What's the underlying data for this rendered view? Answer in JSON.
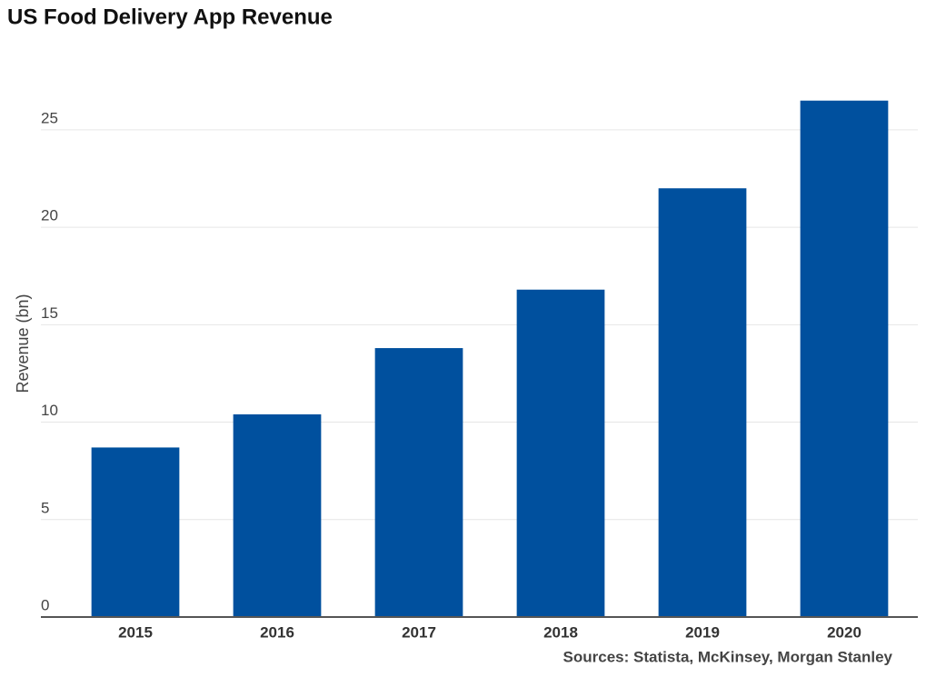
{
  "chart_data": {
    "type": "bar",
    "title": "US Food Delivery App Revenue",
    "y_label": "Revenue (bn)",
    "source": "Sources: Statista, McKinsey, Morgan Stanley",
    "categories": [
      "2015",
      "2016",
      "2017",
      "2018",
      "2019",
      "2020"
    ],
    "values": [
      8.7,
      10.4,
      13.8,
      16.8,
      22.0,
      26.5
    ],
    "color": "#00509e",
    "ylim": [
      0,
      27
    ],
    "yticks": [
      0,
      5,
      10,
      15,
      20,
      25
    ],
    "grid": true
  }
}
